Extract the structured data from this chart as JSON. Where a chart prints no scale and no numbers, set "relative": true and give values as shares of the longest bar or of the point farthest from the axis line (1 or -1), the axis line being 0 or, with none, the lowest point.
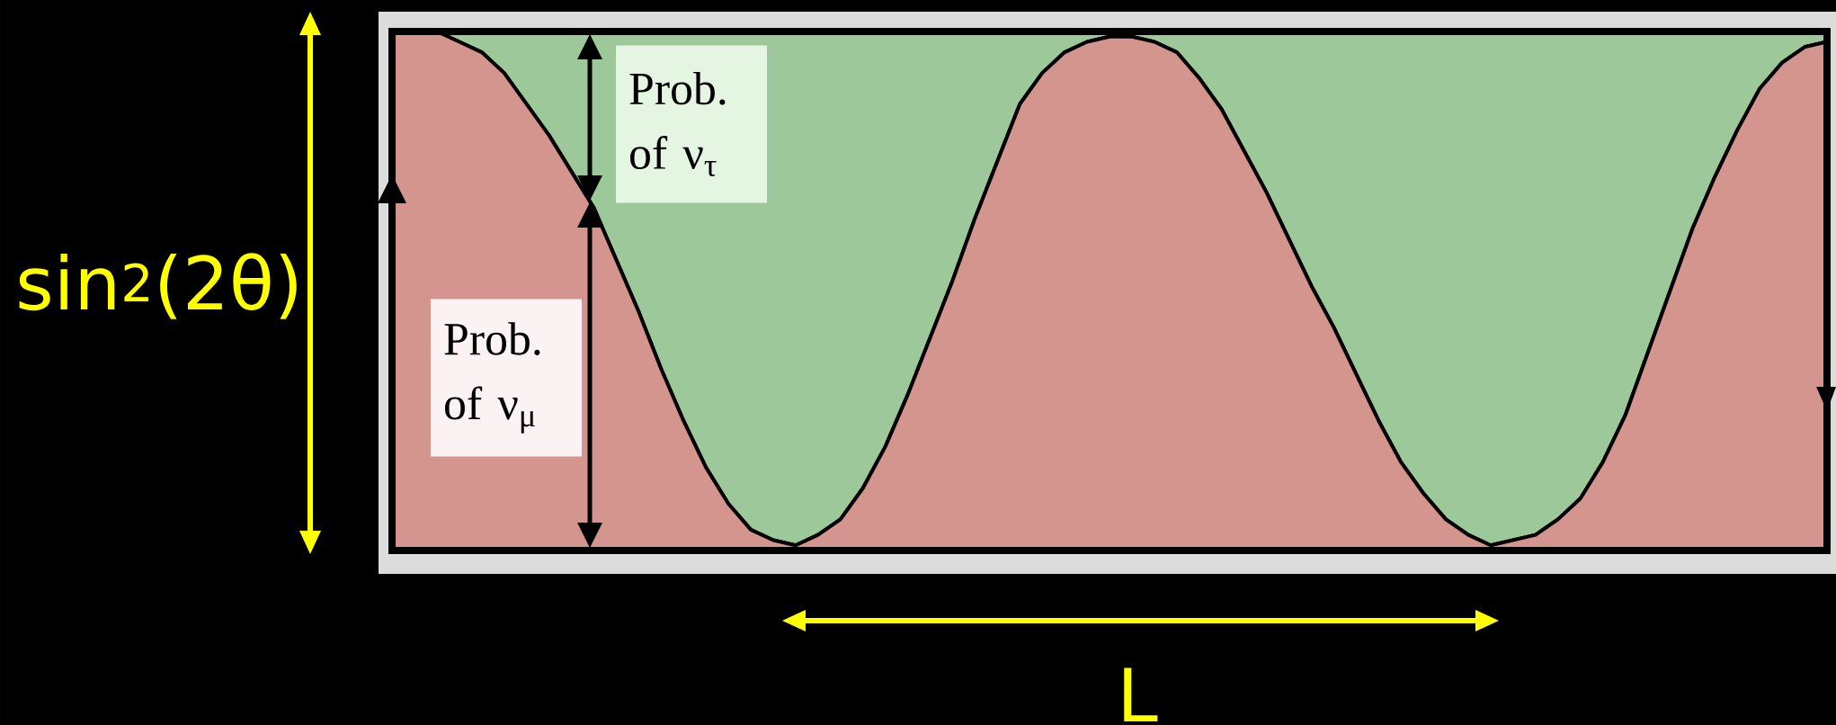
{
  "chart_data": {
    "type": "area",
    "stacked": true,
    "relative": true,
    "xlabel": "L",
    "ylabel": "sin$^{2}$(2θ)",
    "categories": [
      null,
      null,
      null,
      null,
      null,
      null,
      null,
      null,
      null,
      null,
      null,
      null,
      null,
      null,
      null,
      null,
      null,
      null,
      null,
      null,
      null,
      null,
      null,
      null,
      null,
      null,
      null,
      null,
      null,
      null,
      null,
      null,
      null,
      null,
      null,
      null,
      null,
      null,
      null,
      null,
      null,
      null,
      null,
      null,
      null,
      null,
      null,
      null,
      null,
      null,
      null,
      null,
      null,
      null,
      null,
      null,
      null,
      null,
      null,
      null,
      null,
      null,
      null,
      null,
      null
    ],
    "series": [
      {
        "name": "Prob. of ν$_{μ}$",
        "color": "#d4958f",
        "values": [
          1.0,
          1.0,
          1.0,
          0.98,
          0.96,
          0.92,
          0.86,
          0.8,
          0.73,
          0.66,
          0.56,
          0.46,
          0.35,
          0.25,
          0.16,
          0.09,
          0.04,
          0.02,
          0.01,
          0.03,
          0.06,
          0.12,
          0.2,
          0.3,
          0.41,
          0.52,
          0.64,
          0.75,
          0.86,
          0.92,
          0.96,
          0.98,
          0.99,
          0.99,
          0.98,
          0.96,
          0.91,
          0.85,
          0.77,
          0.69,
          0.6,
          0.51,
          0.43,
          0.34,
          0.25,
          0.17,
          0.11,
          0.06,
          0.03,
          0.01,
          0.02,
          0.03,
          0.06,
          0.1,
          0.17,
          0.26,
          0.38,
          0.5,
          0.62,
          0.72,
          0.81,
          0.89,
          0.94,
          0.97,
          0.98
        ]
      },
      {
        "name": "Prob. of ν$_{τ}$",
        "color": "#9cc89a",
        "values": [
          0.0,
          0.0,
          0.0,
          0.02,
          0.04,
          0.08,
          0.14,
          0.2,
          0.27,
          0.34,
          0.44,
          0.54,
          0.65,
          0.75,
          0.84,
          0.91,
          0.96,
          0.98,
          0.99,
          0.97,
          0.94,
          0.88,
          0.8,
          0.7,
          0.59,
          0.48,
          0.36,
          0.25,
          0.14,
          0.08,
          0.04,
          0.02,
          0.01,
          0.01,
          0.02,
          0.04,
          0.09,
          0.15,
          0.23,
          0.31,
          0.4,
          0.49,
          0.57,
          0.66,
          0.75,
          0.83,
          0.89,
          0.94,
          0.97,
          0.99,
          0.98,
          0.97,
          0.94,
          0.9,
          0.83,
          0.74,
          0.62,
          0.5,
          0.38,
          0.28,
          0.19,
          0.11,
          0.06,
          0.03,
          0.02
        ]
      }
    ]
  }
}
